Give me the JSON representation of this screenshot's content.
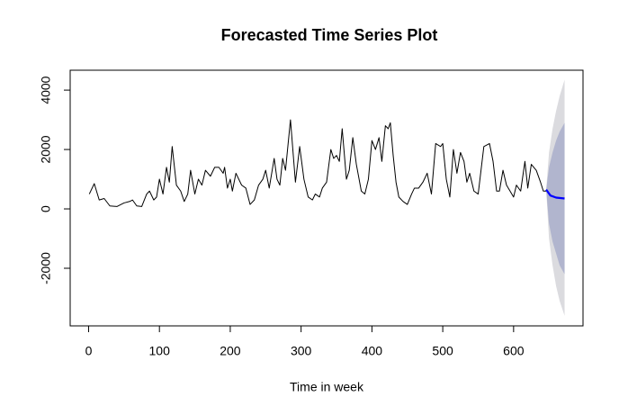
{
  "chart_data": {
    "type": "line",
    "title": "Forecasted Time Series Plot",
    "x_label": "Time in week",
    "xlim": [
      -26,
      698
    ],
    "ylim": [
      -3940,
      4670
    ],
    "xticks": [
      0,
      100,
      200,
      300,
      400,
      500,
      600
    ],
    "yticks": [
      -2000,
      0,
      2000,
      4000
    ],
    "bands": [
      {
        "color": "#dbdbdf",
        "x": [
          646,
          650,
          655,
          660,
          665,
          672
        ],
        "upper": [
          650,
          1900,
          2700,
          3300,
          3800,
          4350
        ],
        "lower": [
          650,
          -1000,
          -1900,
          -2600,
          -3100,
          -3600
        ]
      },
      {
        "color": "#b1b5ce",
        "x": [
          646,
          650,
          655,
          660,
          665,
          672
        ],
        "upper": [
          650,
          1400,
          1900,
          2300,
          2600,
          2900
        ],
        "lower": [
          650,
          -500,
          -1100,
          -1500,
          -1900,
          -2200
        ]
      }
    ],
    "series": [
      {
        "color": "#000000",
        "width": 1,
        "x": [
          1,
          8,
          15,
          22,
          30,
          40,
          50,
          58,
          62,
          68,
          75,
          82,
          86,
          92,
          96,
          100,
          105,
          110,
          114,
          118,
          124,
          130,
          135,
          140,
          144,
          150,
          155,
          160,
          165,
          172,
          178,
          184,
          190,
          192,
          196,
          200,
          203,
          208,
          216,
          222,
          228,
          234,
          240,
          246,
          250,
          255,
          262,
          266,
          270,
          274,
          278,
          285,
          292,
          298,
          304,
          310,
          316,
          320,
          326,
          330,
          336,
          342,
          346,
          350,
          354,
          358,
          364,
          368,
          373,
          378,
          385,
          390,
          395,
          400,
          405,
          410,
          414,
          419,
          423,
          426,
          430,
          434,
          438,
          444,
          450,
          456,
          460,
          466,
          472,
          478,
          484,
          490,
          497,
          500,
          505,
          510,
          515,
          520,
          525,
          530,
          534,
          538,
          544,
          550,
          558,
          566,
          571,
          576,
          580,
          585,
          590,
          595,
          600,
          604,
          610,
          616,
          620,
          625,
          632,
          638,
          642,
          646
        ],
        "values": [
          500,
          850,
          300,
          350,
          100,
          80,
          200,
          250,
          300,
          100,
          80,
          500,
          600,
          300,
          400,
          1000,
          500,
          1400,
          900,
          2100,
          800,
          600,
          250,
          500,
          1300,
          500,
          1000,
          800,
          1300,
          1100,
          1400,
          1400,
          1200,
          1400,
          700,
          1000,
          600,
          1200,
          800,
          700,
          150,
          300,
          800,
          1000,
          1300,
          700,
          1700,
          1000,
          800,
          1700,
          1300,
          3000,
          900,
          2100,
          1000,
          400,
          300,
          500,
          400,
          700,
          900,
          2000,
          1700,
          1800,
          1600,
          2700,
          1000,
          1300,
          2400,
          1500,
          600,
          500,
          1000,
          2300,
          2000,
          2400,
          1600,
          2800,
          2700,
          2900,
          1800,
          900,
          400,
          250,
          150,
          500,
          700,
          700,
          900,
          1200,
          500,
          2200,
          2100,
          2200,
          1000,
          400,
          2000,
          1200,
          1900,
          1600,
          900,
          1200,
          600,
          500,
          2100,
          2200,
          1600,
          600,
          600,
          1300,
          800,
          600,
          400,
          800,
          600,
          1600,
          700,
          1500,
          1300,
          900,
          600,
          600
        ]
      },
      {
        "color": "#0000ff",
        "width": 2.2,
        "x": [
          646,
          652,
          660,
          672
        ],
        "values": [
          650,
          450,
          380,
          350
        ]
      }
    ]
  }
}
